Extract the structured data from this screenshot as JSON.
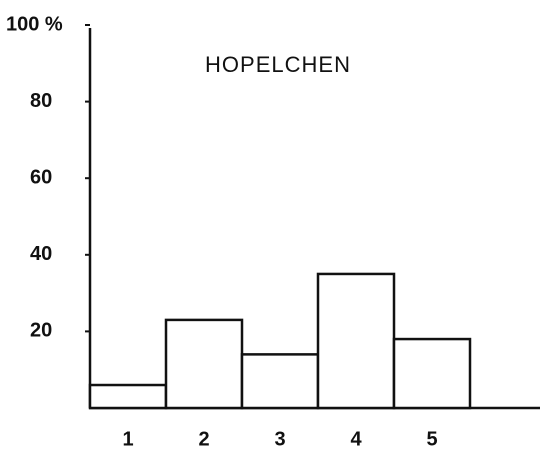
{
  "chart_data": {
    "type": "bar",
    "title": "HOPELCHEN",
    "categories": [
      "1",
      "2",
      "3",
      "4",
      "5"
    ],
    "values": [
      6,
      23,
      14,
      35,
      18
    ],
    "color": "#ffffff",
    "ylim": [
      0,
      100
    ],
    "yticks": [
      {
        "value": 100,
        "label": "100 %"
      },
      80,
      60,
      40,
      20
    ]
  }
}
